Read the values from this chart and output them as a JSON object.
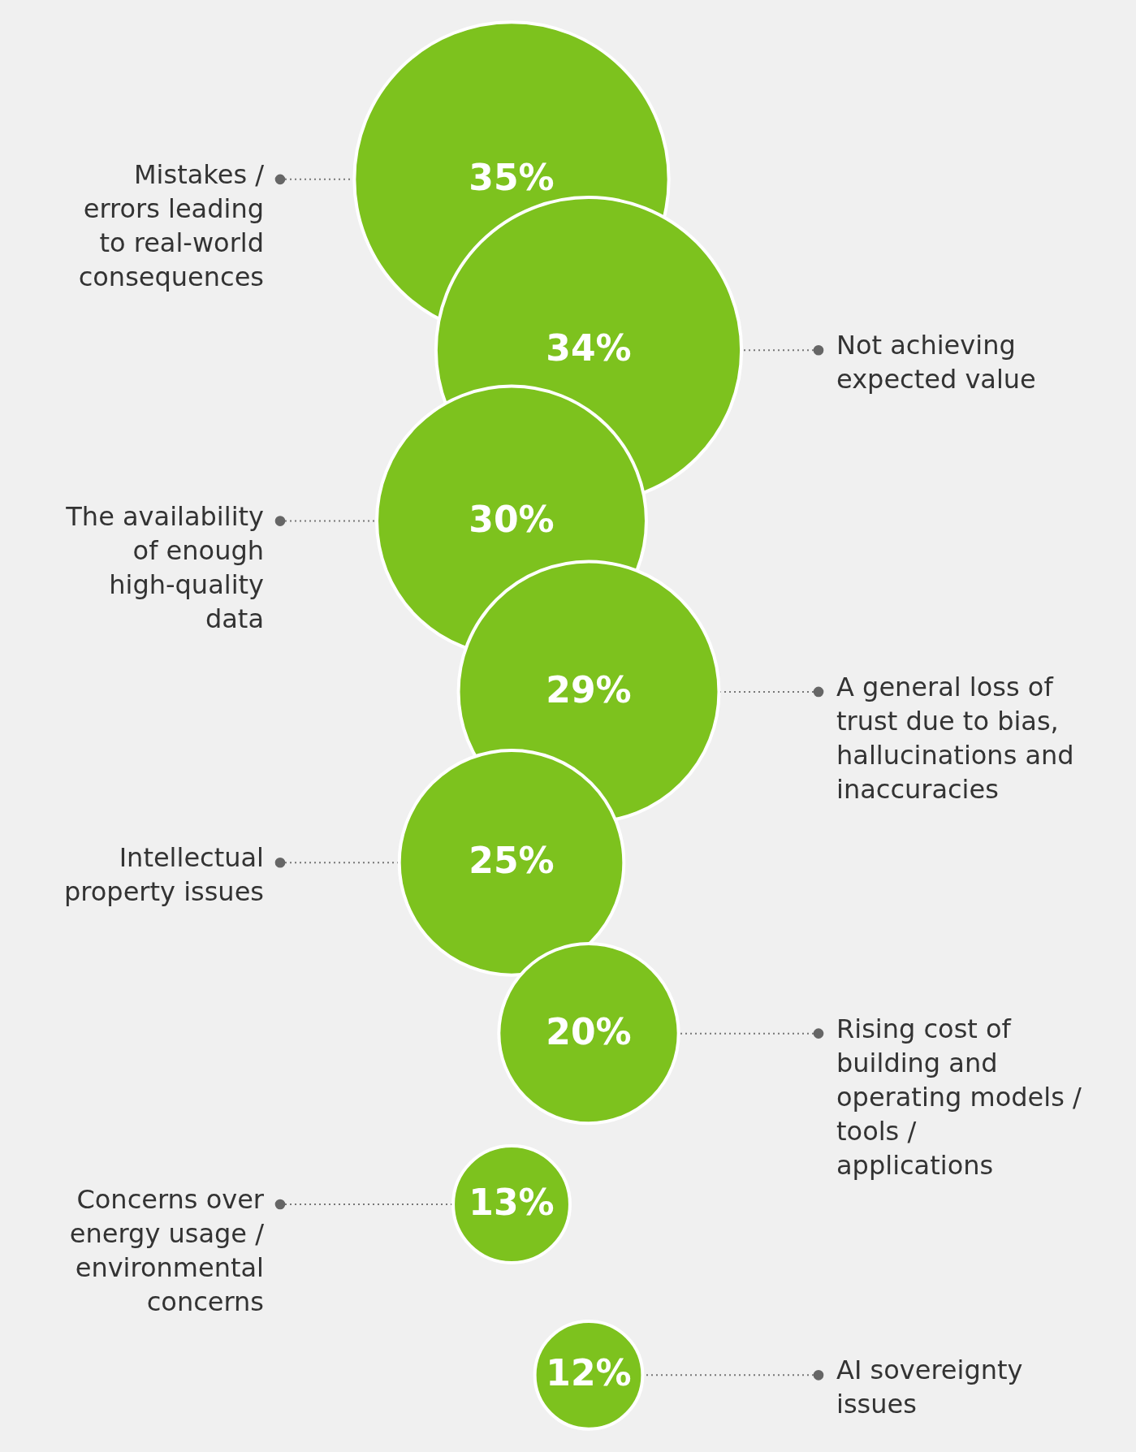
{
  "chart_data": {
    "type": "other",
    "categories": [
      "Mistakes / errors leading to real-world consequences",
      "Not achieving expected value",
      "The availability of enough high-quality data",
      "A general loss of trust due to bias, hallucinations and inaccuracies",
      "Intellectual property issues",
      "Rising cost of building and operating models / tools / applications",
      "Concerns over energy usage / environmental concerns",
      "AI sovereignty issues"
    ],
    "values": [
      35,
      34,
      30,
      29,
      25,
      20,
      13,
      12
    ],
    "value_labels": [
      "35%",
      "34%",
      "30%",
      "29%",
      "25%",
      "20%",
      "13%",
      "12%"
    ],
    "color": "#7dc21e"
  }
}
